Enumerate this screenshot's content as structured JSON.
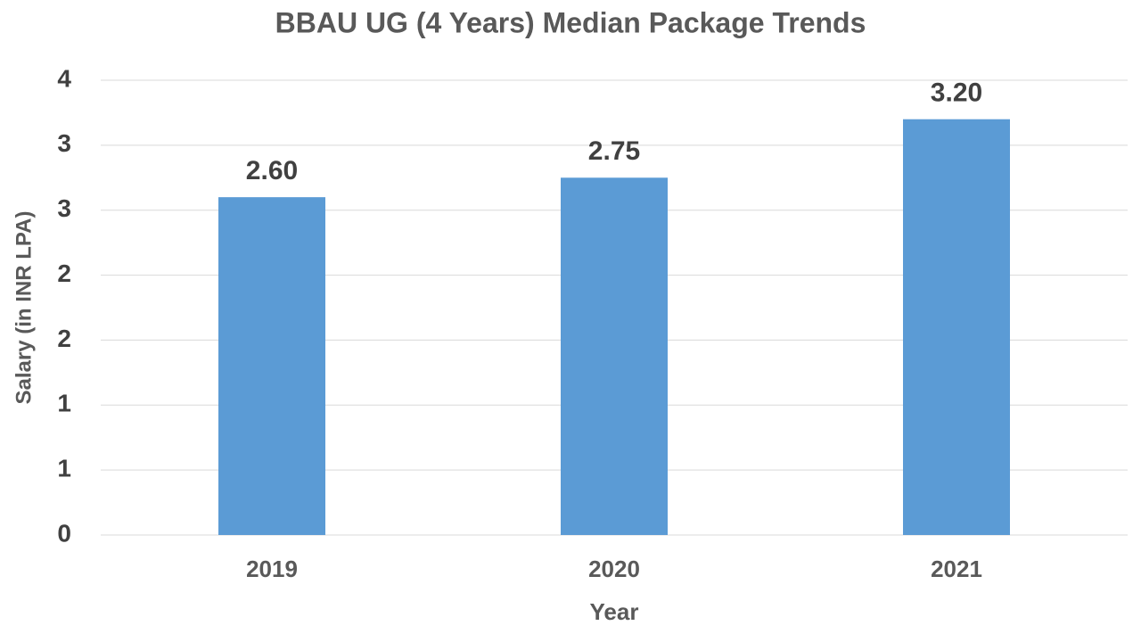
{
  "chart_data": {
    "type": "bar",
    "title": "BBAU UG (4 Years) Median Package Trends",
    "x_label": "Year",
    "y_label": "Salary (in INR LPA)",
    "categories": [
      "2019",
      "2020",
      "2021"
    ],
    "values": [
      2.6,
      2.75,
      3.2
    ],
    "value_labels": [
      "2.60",
      "2.75",
      "3.20"
    ],
    "color": "#5b9bd5",
    "ylim": [
      0,
      3.5
    ],
    "yticks": [
      0,
      {
        "value": 0.5,
        "label": "1"
      },
      1,
      {
        "value": 1.5,
        "label": "2"
      },
      2,
      {
        "value": 2.5,
        "label": "3"
      },
      3,
      {
        "value": 3.5,
        "label": "4"
      }
    ],
    "grid": true
  }
}
